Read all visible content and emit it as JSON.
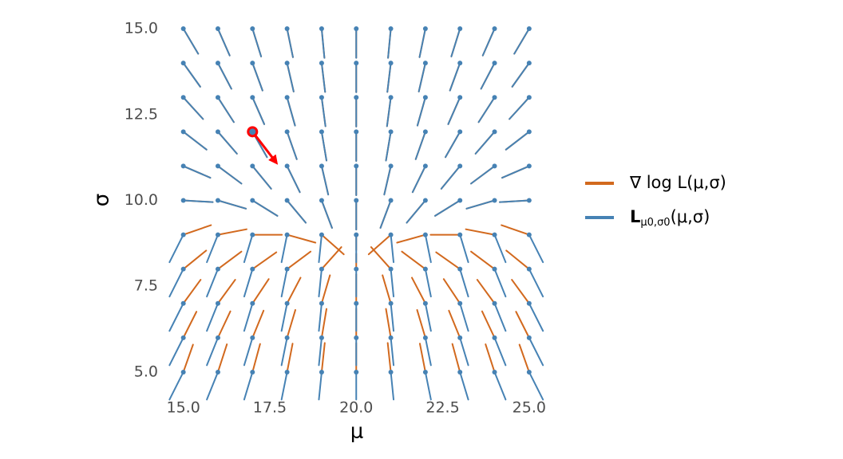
{
  "chart_data": {
    "type": "vector-field",
    "x_label": "μ",
    "y_label": "σ",
    "mu": [
      15,
      16,
      17,
      18,
      19,
      20,
      21,
      22,
      23,
      24,
      25
    ],
    "sigma": [
      5,
      6,
      7,
      8,
      9,
      10,
      11,
      12,
      13,
      14,
      15
    ],
    "xlim": [
      14.5,
      25.5
    ],
    "ylim": [
      4.5,
      15.5
    ],
    "xticks": [
      {
        "value": 15,
        "label": "15.0"
      },
      {
        "value": 17.5,
        "label": "17.5"
      },
      {
        "value": 20,
        "label": "20.0"
      },
      {
        "value": 22.5,
        "label": "22.5"
      },
      {
        "value": 25,
        "label": "25.0"
      }
    ],
    "yticks": [
      {
        "value": 5,
        "label": "5.0"
      },
      {
        "value": 7.5,
        "label": "7.5"
      },
      {
        "value": 10,
        "label": "10.0"
      },
      {
        "value": 12.5,
        "label": "12.5"
      },
      {
        "value": 15,
        "label": "15.0"
      }
    ],
    "point_color": "#4682b4",
    "series": [
      {
        "name": "∇ log L(μ,σ)",
        "color": "#d2691e",
        "dx": [
          [
            0.28,
            0.26,
            0.22,
            0.16,
            0.09,
            0,
            -0.09,
            -0.16,
            -0.22,
            -0.26,
            -0.28
          ],
          [
            0.38,
            0.36,
            0.32,
            0.24,
            0.14,
            0,
            -0.14,
            -0.24,
            -0.32,
            -0.36,
            -0.38
          ],
          [
            0.5,
            0.5,
            0.47,
            0.39,
            0.24,
            0,
            -0.24,
            -0.39,
            -0.47,
            -0.5,
            -0.5
          ],
          [
            0.66,
            0.68,
            0.69,
            0.68,
            0.57,
            0,
            -0.57,
            -0.68,
            -0.69,
            -0.68,
            -0.66
          ],
          [
            0.8,
            0.83,
            0.85,
            0.82,
            0.64,
            0,
            -0.64,
            -0.82,
            -0.85,
            -0.83,
            -0.8
          ],
          [
            0.85,
            0.81,
            0.72,
            0.54,
            0.3,
            0,
            -0.3,
            -0.54,
            -0.72,
            -0.81,
            -0.85
          ],
          [
            0.78,
            0.68,
            0.54,
            0.37,
            0.19,
            0,
            -0.19,
            -0.37,
            -0.54,
            -0.68,
            -0.78
          ],
          [
            0.67,
            0.55,
            0.42,
            0.28,
            0.14,
            0,
            -0.14,
            -0.28,
            -0.42,
            -0.55,
            -0.67
          ],
          [
            0.57,
            0.46,
            0.34,
            0.23,
            0.11,
            0,
            -0.11,
            -0.23,
            -0.34,
            -0.46,
            -0.57
          ],
          [
            0.49,
            0.39,
            0.29,
            0.19,
            0.1,
            0,
            -0.1,
            -0.19,
            -0.29,
            -0.39,
            -0.49
          ],
          [
            0.43,
            0.34,
            0.25,
            0.17,
            0.08,
            0,
            -0.08,
            -0.17,
            -0.25,
            -0.34,
            -0.43
          ]
        ],
        "dy": [
          [
            0.8,
            0.81,
            0.82,
            0.83,
            0.85,
            0.85,
            0.85,
            0.83,
            0.82,
            0.81,
            0.8
          ],
          [
            0.76,
            0.77,
            0.79,
            0.81,
            0.84,
            0.85,
            0.84,
            0.81,
            0.79,
            0.77,
            0.76
          ],
          [
            0.69,
            0.69,
            0.71,
            0.75,
            0.82,
            0.85,
            0.82,
            0.75,
            0.71,
            0.69,
            0.69
          ],
          [
            0.54,
            0.51,
            0.49,
            0.51,
            0.64,
            0.45,
            0.64,
            0.51,
            0.49,
            0.51,
            0.54
          ],
          [
            0.28,
            0.16,
            0,
            -0.23,
            -0.57,
            -0.45,
            -0.57,
            -0.23,
            0,
            0.16,
            0.28
          ],
          [
            -0.05,
            -0.24,
            -0.45,
            -0.65,
            -0.8,
            -0.85,
            -0.8,
            -0.65,
            -0.45,
            -0.24,
            -0.05
          ],
          [
            -0.34,
            -0.51,
            -0.66,
            -0.76,
            -0.83,
            -0.85,
            -0.83,
            -0.76,
            -0.66,
            -0.51,
            -0.34
          ],
          [
            -0.52,
            -0.64,
            -0.74,
            -0.8,
            -0.84,
            -0.85,
            -0.84,
            -0.8,
            -0.74,
            -0.64,
            -0.52
          ],
          [
            -0.63,
            -0.72,
            -0.78,
            -0.82,
            -0.84,
            -0.85,
            -0.84,
            -0.82,
            -0.78,
            -0.72,
            -0.63
          ],
          [
            -0.69,
            -0.75,
            -0.8,
            -0.83,
            -0.84,
            -0.85,
            -0.84,
            -0.83,
            -0.8,
            -0.75,
            -0.69
          ],
          [
            -0.73,
            -0.78,
            -0.81,
            -0.83,
            -0.85,
            -0.85,
            -0.85,
            -0.83,
            -0.81,
            -0.78,
            -0.73
          ]
        ]
      },
      {
        "name": "L",
        "name_subscript": "μ0,σ0",
        "name_suffix": "(μ,σ)",
        "color": "#4682b4",
        "dx": [
          [
            -0.4,
            -0.32,
            -0.24,
            -0.16,
            -0.08,
            0,
            0.08,
            0.16,
            0.24,
            0.32,
            0.4
          ],
          [
            -0.4,
            -0.32,
            -0.24,
            -0.16,
            -0.08,
            0,
            0.08,
            0.16,
            0.24,
            0.32,
            0.4
          ],
          [
            -0.4,
            -0.32,
            -0.24,
            -0.16,
            -0.08,
            0,
            0.08,
            0.16,
            0.24,
            0.32,
            0.4
          ],
          [
            -0.4,
            -0.32,
            -0.24,
            -0.16,
            -0.08,
            0,
            0.08,
            0.16,
            0.24,
            0.32,
            0.4
          ],
          [
            -0.4,
            -0.32,
            -0.24,
            -0.16,
            -0.08,
            0,
            0.08,
            0.16,
            0.24,
            0.32,
            0.4
          ],
          [
            0.85,
            0.81,
            0.72,
            0.54,
            0.3,
            0,
            -0.3,
            -0.54,
            -0.72,
            -0.81,
            -0.85
          ],
          [
            0.78,
            0.68,
            0.54,
            0.37,
            0.19,
            0,
            -0.19,
            -0.37,
            -0.54,
            -0.68,
            -0.78
          ],
          [
            0.67,
            0.55,
            0.42,
            0.28,
            0.14,
            0,
            -0.14,
            -0.28,
            -0.42,
            -0.55,
            -0.67
          ],
          [
            0.57,
            0.46,
            0.34,
            0.23,
            0.11,
            0,
            -0.11,
            -0.23,
            -0.34,
            -0.46,
            -0.57
          ],
          [
            0.49,
            0.39,
            0.29,
            0.19,
            0.1,
            0,
            -0.1,
            -0.19,
            -0.29,
            -0.39,
            -0.49
          ],
          [
            0.43,
            0.34,
            0.25,
            0.17,
            0.08,
            0,
            -0.08,
            -0.17,
            -0.25,
            -0.34,
            -0.43
          ]
        ],
        "dy": [
          [
            -0.8,
            -0.8,
            -0.8,
            -0.8,
            -0.8,
            -0.8,
            -0.8,
            -0.8,
            -0.8,
            -0.8,
            -0.8
          ],
          [
            -0.8,
            -0.8,
            -0.8,
            -0.8,
            -0.8,
            -0.8,
            -0.8,
            -0.8,
            -0.8,
            -0.8,
            -0.8
          ],
          [
            -0.8,
            -0.8,
            -0.8,
            -0.8,
            -0.8,
            -0.8,
            -0.8,
            -0.8,
            -0.8,
            -0.8,
            -0.8
          ],
          [
            -0.8,
            -0.8,
            -0.8,
            -0.8,
            -0.8,
            -0.8,
            -0.8,
            -0.8,
            -0.8,
            -0.8,
            -0.8
          ],
          [
            -0.8,
            -0.8,
            -0.8,
            -0.8,
            -0.8,
            -0.8,
            -0.8,
            -0.8,
            -0.8,
            -0.8,
            -0.8
          ],
          [
            -0.05,
            -0.24,
            -0.45,
            -0.65,
            -0.8,
            -0.85,
            -0.8,
            -0.65,
            -0.45,
            -0.24,
            -0.05
          ],
          [
            -0.34,
            -0.51,
            -0.66,
            -0.76,
            -0.83,
            -0.85,
            -0.83,
            -0.76,
            -0.66,
            -0.51,
            -0.34
          ],
          [
            -0.52,
            -0.64,
            -0.74,
            -0.8,
            -0.84,
            -0.85,
            -0.84,
            -0.8,
            -0.74,
            -0.64,
            -0.52
          ],
          [
            -0.63,
            -0.72,
            -0.78,
            -0.82,
            -0.84,
            -0.85,
            -0.84,
            -0.82,
            -0.78,
            -0.72,
            -0.63
          ],
          [
            -0.69,
            -0.75,
            -0.8,
            -0.83,
            -0.84,
            -0.85,
            -0.84,
            -0.83,
            -0.8,
            -0.75,
            -0.69
          ],
          [
            -0.73,
            -0.78,
            -0.81,
            -0.83,
            -0.85,
            -0.85,
            -0.85,
            -0.83,
            -0.81,
            -0.78,
            -0.73
          ]
        ]
      }
    ],
    "highlight": {
      "mu": 17,
      "sigma": 12,
      "dx": 0.65,
      "dy": -0.85,
      "color": "#ff0000"
    }
  }
}
